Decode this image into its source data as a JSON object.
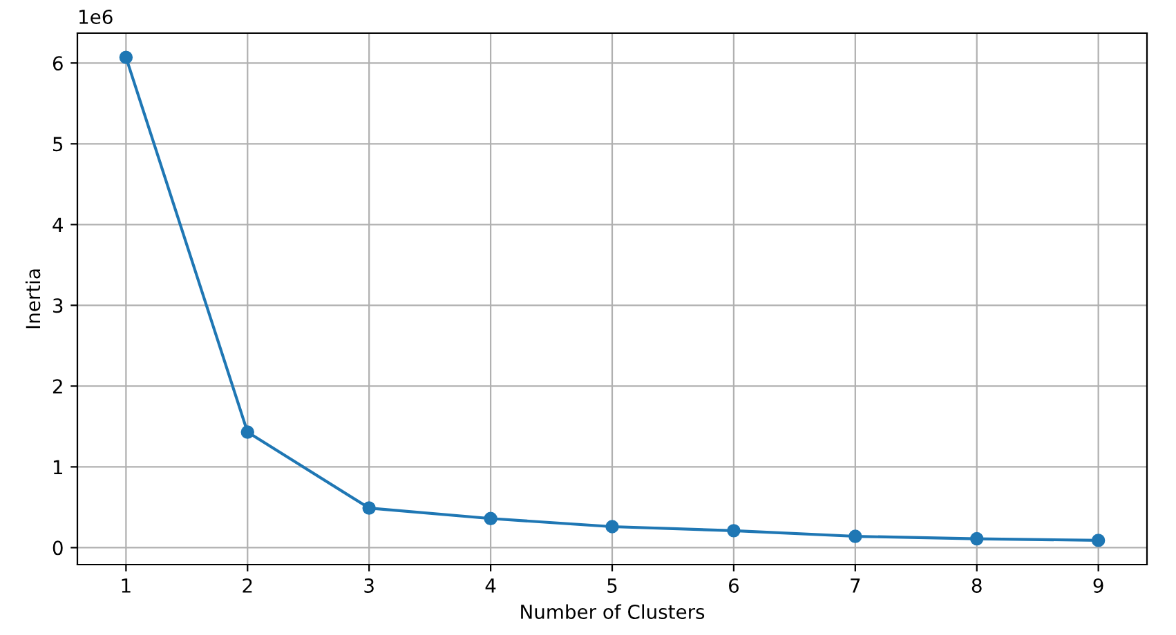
{
  "chart_data": {
    "type": "line",
    "xlabel": "Number of Clusters",
    "ylabel": "Inertia",
    "x": [
      1,
      2,
      3,
      4,
      5,
      6,
      7,
      8,
      9
    ],
    "series": [
      {
        "color": "#1f77b4",
        "values": [
          6.07,
          1.43,
          0.49,
          0.36,
          0.26,
          0.21,
          0.14,
          0.11,
          0.09
        ]
      }
    ],
    "xlim": [
      0.6,
      9.4
    ],
    "xticks": [
      1,
      2,
      3,
      4,
      5,
      6,
      7,
      8,
      9
    ],
    "ylim": [
      -0.21,
      6.37
    ],
    "yticks": [
      0,
      1,
      2,
      3,
      4,
      5,
      6
    ],
    "annotations": [
      "1e6"
    ],
    "grid": true,
    "marker": "circle",
    "line_style": "solid"
  }
}
